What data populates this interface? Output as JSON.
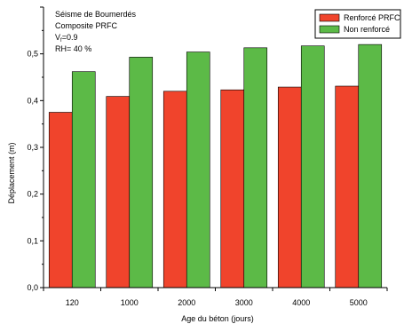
{
  "chart_data": {
    "type": "bar",
    "title": "",
    "annotations": [
      "Séisme de Boumerdés",
      "Composite PRFC",
      "RH= 40 %"
    ],
    "annotation_vf": {
      "base": "V",
      "sub": "f",
      "rest": "=0.9"
    },
    "xlabel": "Age du béton (jours)",
    "ylabel": "Déplacement (m)",
    "ylim": [
      0,
      0.6
    ],
    "yticks": [
      "0,0",
      "0,1",
      "0,2",
      "0,3",
      "0,4",
      "0,5"
    ],
    "categories": [
      "120",
      "1000",
      "2000",
      "3000",
      "4000",
      "5000"
    ],
    "series": [
      {
        "name": "Renforcé PRFC",
        "color": "#f0442c",
        "values": [
          0.375,
          0.409,
          0.42,
          0.423,
          0.429,
          0.431
        ]
      },
      {
        "name": "Non renforcé",
        "color": "#5cba47",
        "values": [
          0.462,
          0.493,
          0.504,
          0.513,
          0.517,
          0.52
        ]
      }
    ],
    "grid": false,
    "legend_position": "top-right"
  }
}
